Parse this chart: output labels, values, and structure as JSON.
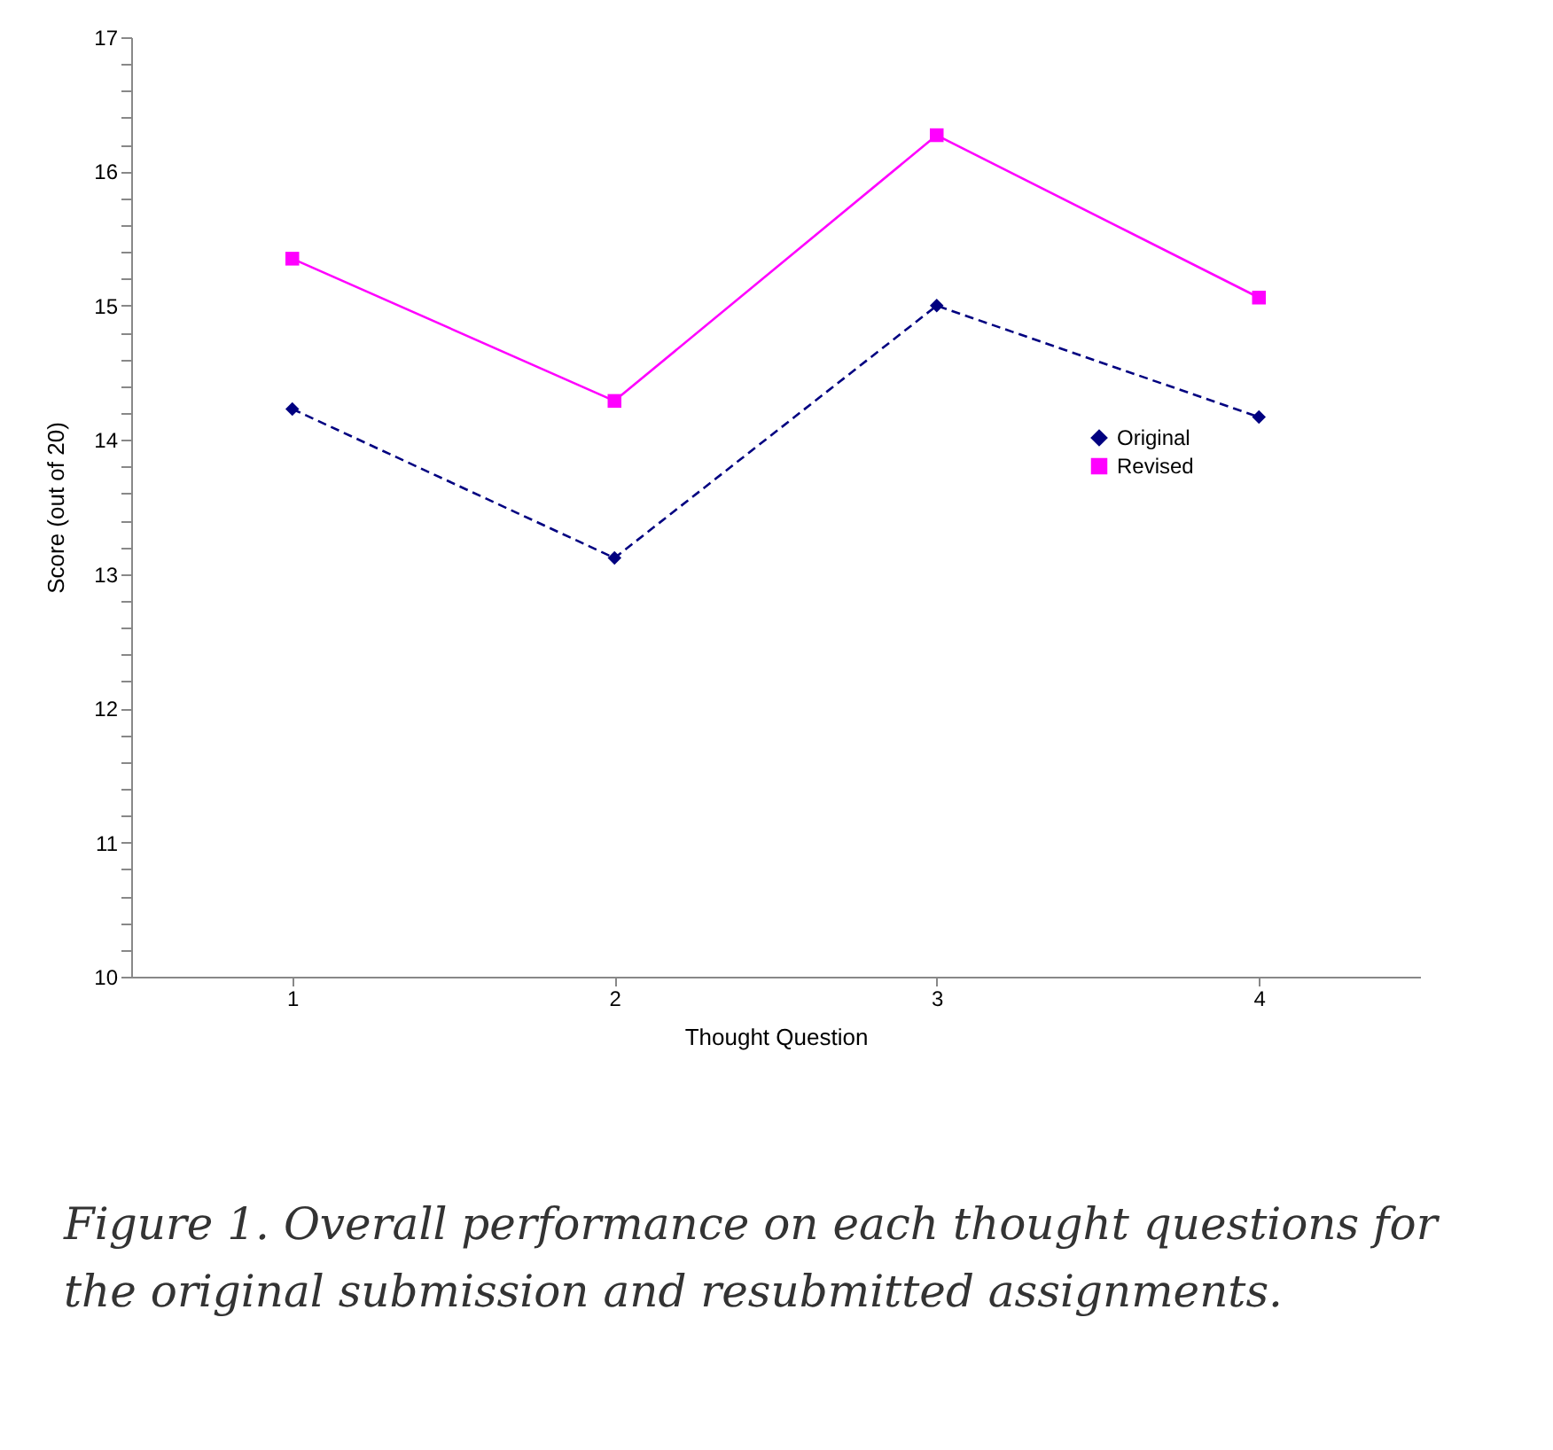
{
  "chart_data": {
    "type": "line",
    "xlabel": "Thought Question",
    "ylabel": "Score (out of 20)",
    "categories": [
      "1",
      "2",
      "3",
      "4"
    ],
    "series": [
      {
        "name": "Original",
        "color": "#000080",
        "marker": "diamond",
        "line_style": "dashed",
        "values": [
          14.23,
          13.12,
          15.0,
          14.17
        ]
      },
      {
        "name": "Revised",
        "color": "#ff00ff",
        "marker": "square",
        "line_style": "solid",
        "values": [
          15.35,
          14.29,
          16.27,
          15.06
        ]
      }
    ],
    "ylim": [
      10,
      17
    ],
    "yticks": [
      10,
      {
        "value": 10.2,
        "label": null
      },
      {
        "value": 10.4,
        "label": null
      },
      {
        "value": 10.6,
        "label": null
      },
      {
        "value": 10.8,
        "label": null
      },
      11,
      {
        "value": 11.2,
        "label": null
      },
      {
        "value": 11.4,
        "label": null
      },
      {
        "value": 11.6,
        "label": null
      },
      {
        "value": 11.8,
        "label": null
      },
      12,
      {
        "value": 12.2,
        "label": null
      },
      {
        "value": 12.4,
        "label": null
      },
      {
        "value": 12.6,
        "label": null
      },
      {
        "value": 12.8,
        "label": null
      },
      13,
      {
        "value": 13.2,
        "label": null
      },
      {
        "value": 13.4,
        "label": null
      },
      {
        "value": 13.6,
        "label": null
      },
      {
        "value": 13.8,
        "label": null
      },
      14,
      {
        "value": 14.2,
        "label": null
      },
      {
        "value": 14.4,
        "label": null
      },
      {
        "value": 14.6,
        "label": null
      },
      {
        "value": 14.8,
        "label": null
      },
      15,
      {
        "value": 15.2,
        "label": null
      },
      {
        "value": 15.4,
        "label": null
      },
      {
        "value": 15.6,
        "label": null
      },
      {
        "value": 15.8,
        "label": null
      },
      16,
      {
        "value": 16.2,
        "label": null
      },
      {
        "value": 16.4,
        "label": null
      },
      {
        "value": 16.6,
        "label": null
      },
      {
        "value": 16.8,
        "label": null
      },
      17
    ],
    "grid": false,
    "legend": "right",
    "annotations": [
      "Figure 1. Overall performance on each thought questions for the original submission and resubmitted assignments."
    ]
  }
}
